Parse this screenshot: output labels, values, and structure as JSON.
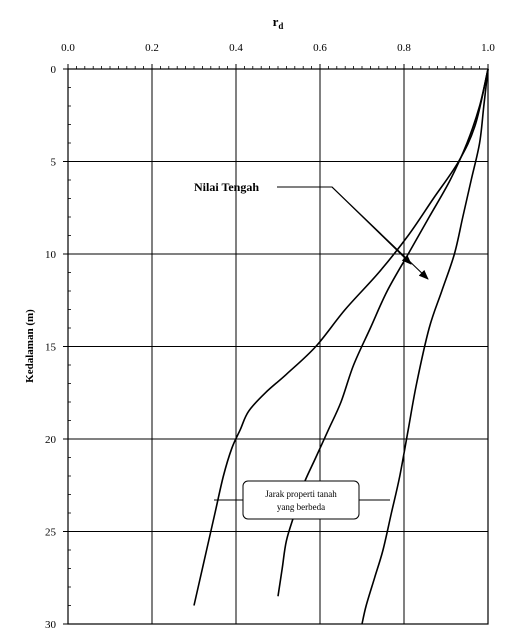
{
  "chart_data": {
    "type": "line",
    "title": "r",
    "title_subscript": "d",
    "xlabel": "",
    "ylabel": "Kedalaman (m)",
    "x_axis_position": "top",
    "y_axis_inverted": true,
    "xlim": [
      0,
      1
    ],
    "ylim": [
      0,
      30
    ],
    "x_ticks": [
      "0.0",
      "0.2",
      "0.4",
      "0.6",
      "0.8",
      "1.0"
    ],
    "y_ticks": [
      "0",
      "5",
      "10",
      "15",
      "20",
      "25",
      "30"
    ],
    "grid": true,
    "grid_color": "#000000",
    "line_color": "#000000",
    "series": [
      {
        "x": [
          1.0,
          0.97,
          0.93,
          0.87,
          0.81,
          0.74,
          0.66,
          0.59,
          0.52,
          0.47,
          0.43,
          0.41,
          0.39,
          0.37,
          0.35,
          0.33,
          0.31,
          0.3
        ],
        "y": [
          0,
          3,
          5,
          7,
          9,
          11,
          13,
          15,
          16.5,
          17.5,
          18.5,
          19.5,
          20.5,
          22,
          24,
          26,
          28,
          29
        ]
      },
      {
        "x": [
          1.0,
          0.98,
          0.95,
          0.91,
          0.86,
          0.81,
          0.76,
          0.72,
          0.68,
          0.65,
          0.62,
          0.59,
          0.56,
          0.54,
          0.52,
          0.51,
          0.5
        ],
        "y": [
          0,
          2,
          4,
          6,
          8,
          10,
          12,
          14,
          16,
          18,
          19.5,
          21,
          22.5,
          24,
          25.5,
          27,
          28.5
        ]
      },
      {
        "x": [
          1.0,
          0.99,
          0.98,
          0.96,
          0.94,
          0.92,
          0.89,
          0.86,
          0.83,
          0.81,
          0.79,
          0.77,
          0.75,
          0.73,
          0.71,
          0.7
        ],
        "y": [
          0,
          2,
          4,
          6,
          8,
          10,
          12,
          14,
          17,
          19.5,
          22,
          24,
          26,
          27.5,
          29,
          30
        ]
      }
    ],
    "annotations": [
      {
        "text": "Nilai Tengah",
        "points_to": {
          "x": 0.87,
          "y": 11.5
        }
      },
      {
        "text_lines": [
          "Jarak properti tanah",
          "yang berbeda"
        ]
      }
    ]
  }
}
